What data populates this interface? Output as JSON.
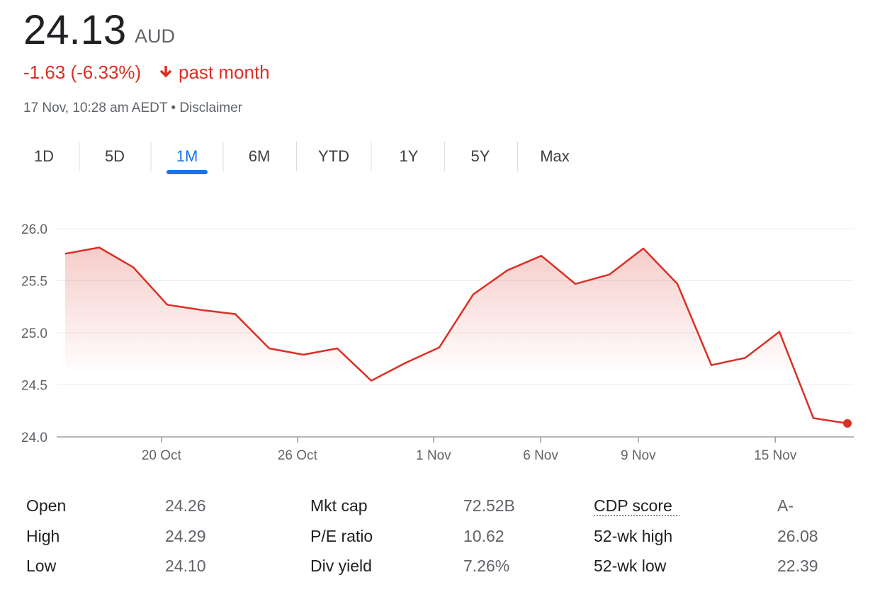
{
  "header": {
    "price": "24.13",
    "currency": "AUD",
    "change": "-1.63 (-6.33%)",
    "period": "past month",
    "timestamp": "17 Nov, 10:28 am AEDT • Disclaimer"
  },
  "tabs": {
    "items": [
      "1D",
      "5D",
      "1M",
      "6M",
      "YTD",
      "1Y",
      "5Y",
      "Max"
    ],
    "selected_index": 2
  },
  "chart_data": {
    "type": "line",
    "color": "#d93025",
    "values": [
      25.76,
      25.82,
      25.63,
      25.27,
      25.22,
      25.18,
      24.85,
      24.79,
      24.85,
      24.54,
      24.71,
      24.86,
      25.37,
      25.6,
      25.74,
      25.47,
      25.56,
      25.81,
      25.47,
      24.69,
      24.76,
      25.01,
      24.18,
      24.13
    ],
    "xlim": [
      0,
      23
    ],
    "xticks": [
      {
        "value": 2.83,
        "label": "20 Oct"
      },
      {
        "value": 6.83,
        "label": "26 Oct"
      },
      {
        "value": 10.83,
        "label": "1 Nov"
      },
      {
        "value": 13.98,
        "label": "6 Nov"
      },
      {
        "value": 16.85,
        "label": "9 Nov"
      },
      {
        "value": 20.88,
        "label": "15 Nov"
      }
    ],
    "ylim": [
      24,
      26
    ],
    "yticks": [
      {
        "value": 24,
        "label": "24.0"
      },
      24.5,
      {
        "value": 25,
        "label": "25.0"
      },
      25.5,
      {
        "value": 26,
        "label": "26.0"
      }
    ],
    "grid": true
  },
  "stats": [
    [
      [
        "Open",
        "24.26"
      ],
      [
        "High",
        "24.29"
      ],
      [
        "Low",
        "24.10"
      ]
    ],
    [
      [
        "Mkt cap",
        "72.52B"
      ],
      [
        "P/E ratio",
        "10.62"
      ],
      [
        "Div yield",
        "7.26%"
      ]
    ],
    [
      [
        "CDP score",
        "A-"
      ],
      [
        "52-wk high",
        "26.08"
      ],
      [
        "52-wk low",
        "22.39"
      ]
    ]
  ]
}
